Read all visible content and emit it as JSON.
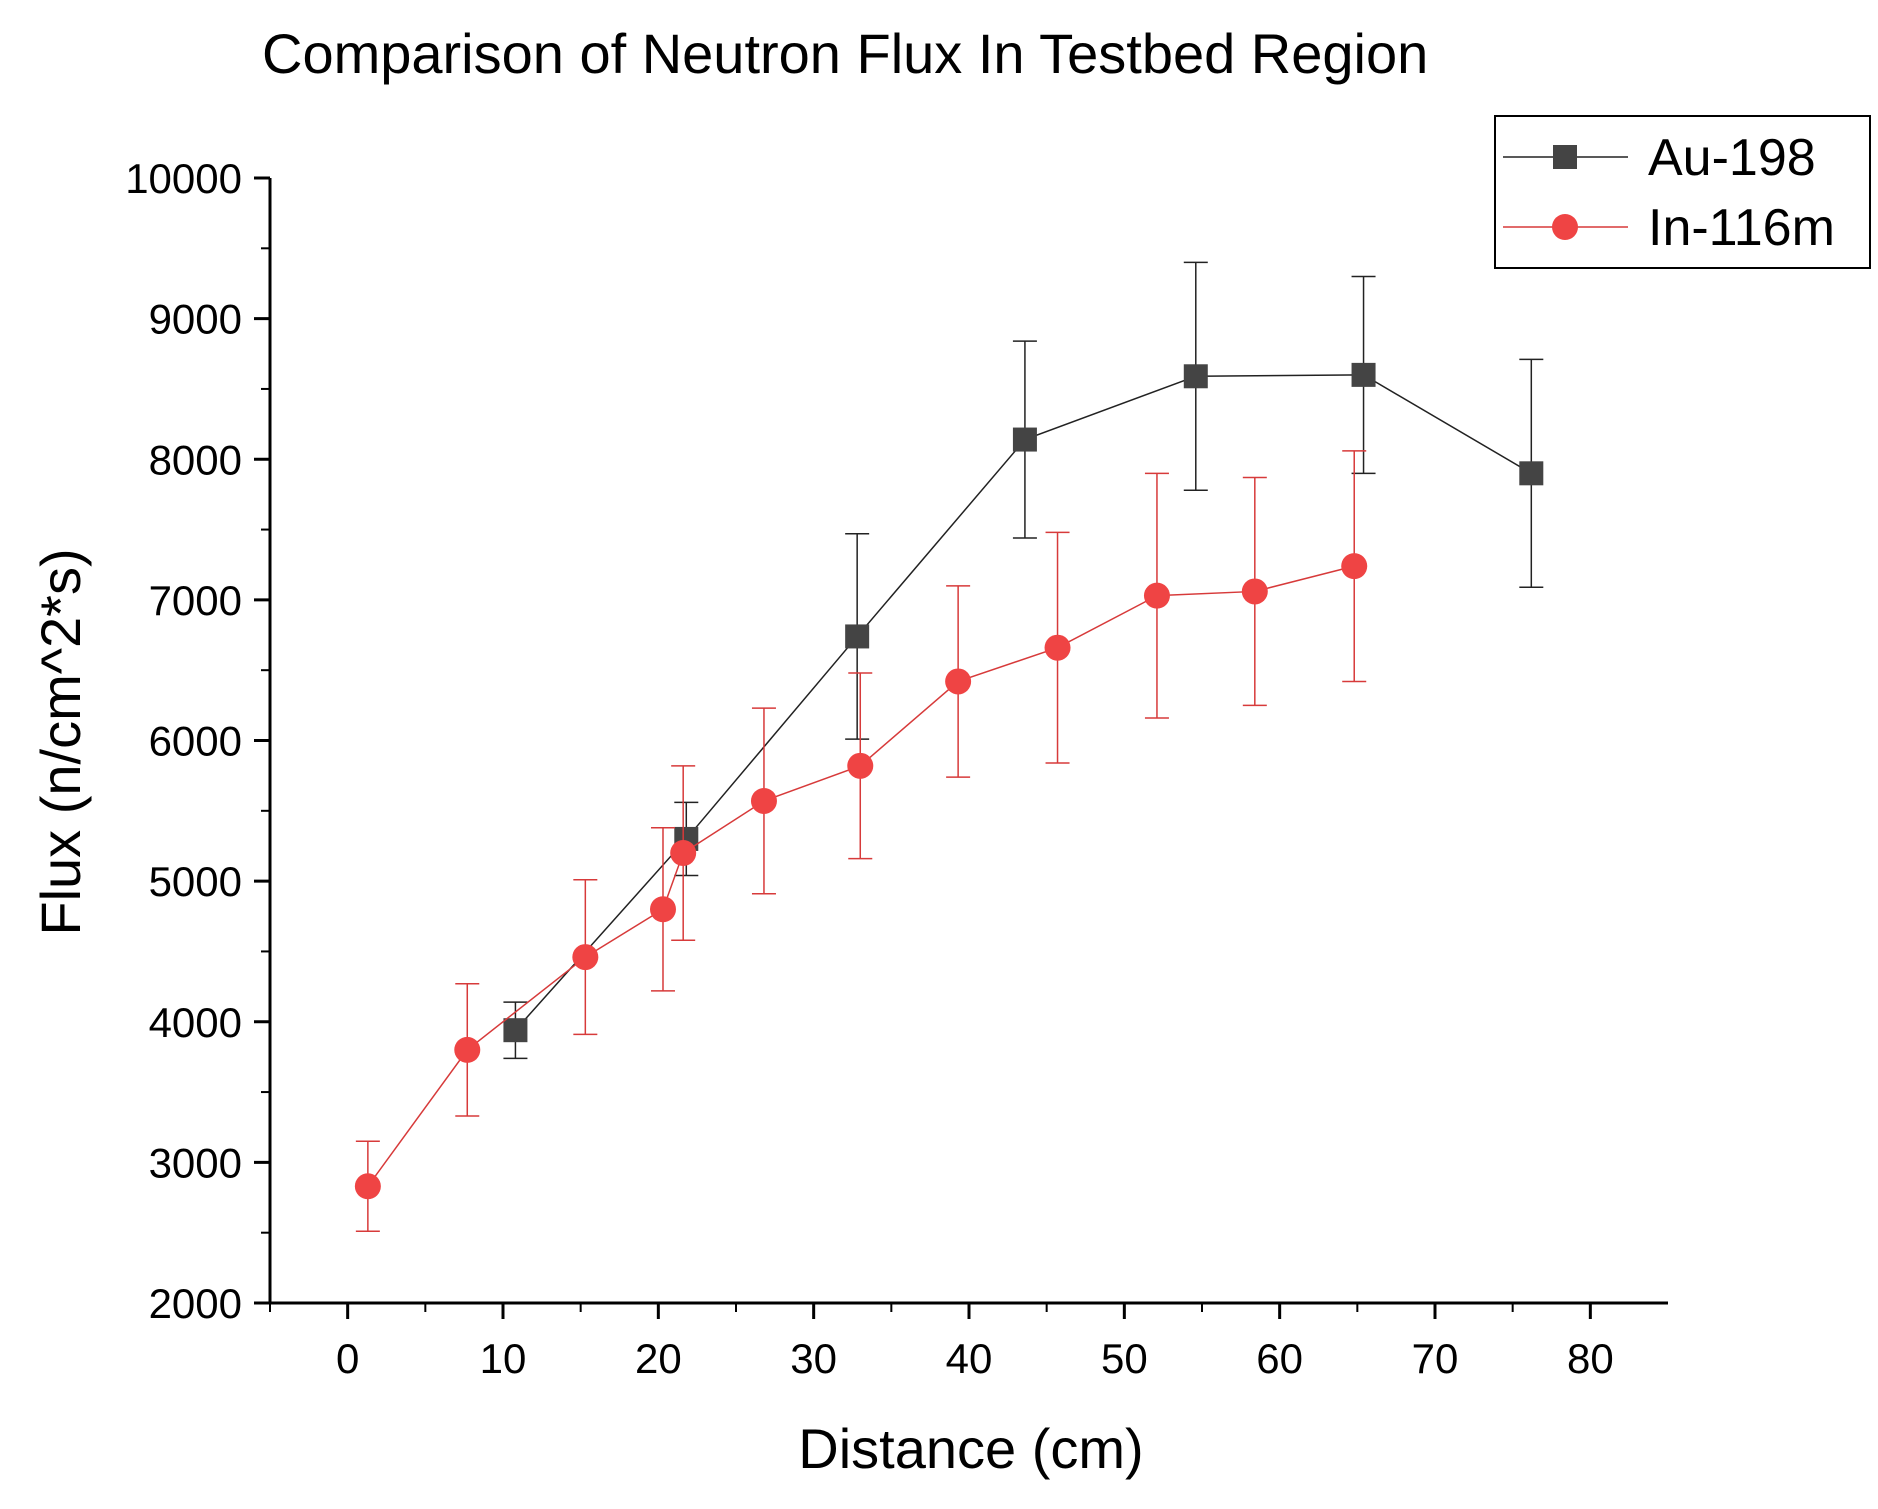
{
  "chart_data": {
    "type": "scatter",
    "title": "Comparison of Neutron Flux In Testbed Region",
    "xlabel": "Distance (cm)",
    "ylabel": "Flux (n/cm^2*s)",
    "xlim": [
      -5,
      85
    ],
    "ylim": [
      2000,
      10000
    ],
    "x_ticks": [
      0,
      10,
      20,
      30,
      40,
      50,
      60,
      70,
      80
    ],
    "y_ticks": [
      2000,
      3000,
      4000,
      5000,
      6000,
      7000,
      8000,
      9000,
      10000
    ],
    "x_tick_labels": [
      "0",
      "10",
      "20",
      "30",
      "40",
      "50",
      "60",
      "70",
      "80"
    ],
    "y_tick_labels": [
      "2000",
      "3000",
      "4000",
      "5000",
      "6000",
      "7000",
      "8000",
      "9000",
      "10000"
    ],
    "grid": false,
    "legend_position": "top-right",
    "series": [
      {
        "name": "Au-198",
        "marker": "square",
        "color": "#444444",
        "line_color": "#222222",
        "x": [
          10.8,
          21.8,
          32.8,
          43.6,
          54.6,
          65.4,
          76.2
        ],
        "y": [
          3940,
          5300,
          6740,
          8140,
          8590,
          8600,
          7900
        ],
        "err": [
          200,
          260,
          730,
          700,
          810,
          700,
          810
        ]
      },
      {
        "name": "In-116m",
        "marker": "circle",
        "color": "#ef4444",
        "line_color": "#d73a3a",
        "x": [
          1.3,
          7.7,
          15.3,
          20.3,
          21.6,
          26.8,
          33.0,
          39.3,
          45.7,
          52.1,
          58.4,
          64.8
        ],
        "y": [
          2830,
          3800,
          4460,
          4800,
          5200,
          5570,
          5820,
          6420,
          6660,
          7030,
          7060,
          7240
        ],
        "err": [
          320,
          470,
          550,
          580,
          620,
          660,
          660,
          680,
          820,
          870,
          810,
          820
        ]
      }
    ]
  }
}
